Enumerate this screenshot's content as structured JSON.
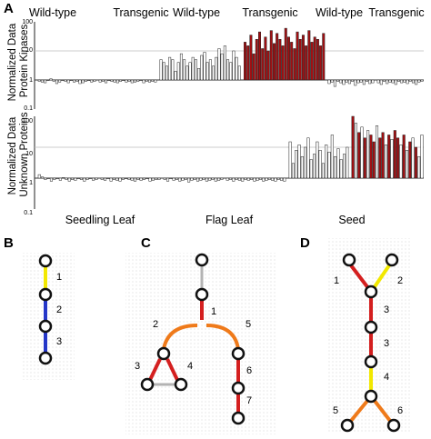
{
  "panel_labels": {
    "a": "A",
    "b": "B",
    "c": "C",
    "d": "D"
  },
  "top_headers": [
    "Wild-type",
    "Transgenic",
    "Wild-type",
    "Transgenic",
    "Wild-type",
    "Transgenic"
  ],
  "tissue_labels": [
    "Seedling Leaf",
    "Flag Leaf",
    "Seed"
  ],
  "colors": {
    "wild_type_bar": "#ffffff",
    "transgenic_bar": "#a30f12",
    "bar_outline": "#222222",
    "reference_line": "#bdbdbd",
    "node_fill": "#ffffff",
    "node_stroke": "#111111",
    "dot_background": "#eeeeee",
    "edge_red": "#d41f1f",
    "edge_orange": "#ef7a1a",
    "edge_yellow": "#f2e800",
    "edge_blue": "#2436c8",
    "edge_gray": "#b3b3b3"
  },
  "chart_data": [
    {
      "type": "bar",
      "ylabel": "Normalized Data Protein Kinases",
      "yscale": "log",
      "ylim": [
        0.1,
        100
      ],
      "yticks": [
        "100",
        "10",
        "1",
        "0.1"
      ],
      "reference_lines": [
        1,
        10
      ],
      "series": [
        {
          "group": "Seedling Leaf Wild-type",
          "color": "white",
          "values": [
            0.9,
            0.85,
            0.8,
            0.95,
            1.1,
            0.9,
            0.75,
            0.85,
            1.0,
            0.9,
            0.8,
            0.95,
            0.85,
            0.9,
            0.75,
            0.8,
            0.9,
            0.95,
            0.85,
            0.9
          ]
        },
        {
          "group": "Seedling Leaf Transgenic",
          "color": "white",
          "values": [
            0.85,
            0.9,
            0.8,
            0.95,
            0.9,
            0.85,
            0.8,
            0.9,
            0.95,
            0.85,
            0.9,
            0.8,
            0.85,
            0.9,
            0.95,
            0.8,
            0.9,
            0.85,
            0.9,
            0.85
          ]
        },
        {
          "group": "Flag Leaf Wild-type",
          "color": "white",
          "values": [
            5,
            4,
            3,
            6,
            5,
            2,
            4,
            8,
            5,
            3,
            4,
            6,
            5,
            2.5,
            7,
            9,
            4,
            5,
            3,
            6,
            12,
            8,
            15,
            5,
            4,
            10,
            6,
            3
          ]
        },
        {
          "group": "Flag Leaf Transgenic",
          "color": "red",
          "values": [
            20,
            15,
            35,
            8,
            25,
            45,
            12,
            30,
            10,
            50,
            18,
            40,
            25,
            15,
            60,
            30,
            20,
            12,
            45,
            25,
            35,
            15,
            50,
            20,
            30,
            25,
            15,
            40
          ]
        },
        {
          "group": "Seed Wild-type",
          "color": "white",
          "values": [
            0.75,
            0.85,
            0.6,
            0.9,
            0.8,
            0.7,
            0.85,
            0.75,
            0.9,
            0.65,
            0.8,
            0.85,
            0.7,
            0.9,
            0.75,
            0.8
          ]
        },
        {
          "group": "Seed Transgenic",
          "color": "white",
          "values": [
            0.8,
            0.7,
            0.9,
            0.75,
            0.85,
            0.8,
            0.7,
            0.9,
            0.8,
            0.85,
            0.75,
            0.9,
            0.8,
            0.7,
            0.85,
            0.9
          ]
        }
      ]
    },
    {
      "type": "bar",
      "ylabel": "Normalized Data Unknown Proteins",
      "yscale": "log",
      "ylim": [
        0.1,
        100
      ],
      "yticks": [
        "100",
        "10",
        "1",
        "0.1"
      ],
      "reference_lines": [
        1,
        10
      ],
      "series": [
        {
          "group": "Seedling Leaf Wild-type",
          "color": "white",
          "values": [
            1.3,
            1.1,
            0.9,
            1.0,
            0.8,
            0.9,
            0.95,
            0.85,
            1.05,
            0.9,
            0.8,
            0.9,
            0.85,
            0.95,
            0.9,
            0.8,
            0.9,
            1.0,
            0.85,
            0.9
          ]
        },
        {
          "group": "Seedling Leaf Transgenic",
          "color": "white",
          "values": [
            0.9,
            0.85,
            0.95,
            0.8,
            0.9,
            0.85,
            0.8,
            0.9,
            0.95,
            0.9,
            0.85,
            0.8,
            0.9,
            0.85,
            0.9,
            0.95,
            0.8,
            0.85,
            0.9,
            0.9
          ]
        },
        {
          "group": "Flag Leaf Wild-type",
          "color": "white",
          "values": [
            0.9,
            0.8,
            0.95,
            0.85,
            0.9,
            0.8,
            0.85,
            0.9,
            0.75,
            0.85,
            0.9,
            0.8,
            0.85,
            0.9,
            0.8,
            0.85,
            0.9,
            0.8,
            0.85,
            0.9
          ]
        },
        {
          "group": "Flag Leaf Transgenic",
          "color": "white",
          "values": [
            0.85,
            0.9,
            0.8,
            0.9,
            0.85,
            0.8,
            0.9,
            0.85,
            0.9,
            0.8,
            0.85,
            0.9,
            0.8,
            0.85,
            0.9,
            0.85,
            0.8,
            0.9,
            0.85,
            0.8
          ]
        },
        {
          "group": "Seed Wild-type",
          "color": "white",
          "values": [
            15,
            3,
            8,
            12,
            5,
            10,
            20,
            4,
            6,
            15,
            8,
            3,
            12,
            7,
            25,
            5,
            9,
            4,
            6,
            10
          ]
        },
        {
          "group": "Seed Transgenic",
          "color": "mixed",
          "values": [
            100,
            60,
            30,
            45,
            20,
            35,
            25,
            15,
            50,
            20,
            30,
            12,
            25,
            18,
            35,
            20,
            12,
            25,
            8,
            15,
            20,
            10,
            5,
            25
          ],
          "red_flags": [
            true,
            false,
            true,
            false,
            true,
            false,
            true,
            true,
            false,
            true,
            true,
            false,
            true,
            false,
            true,
            true,
            false,
            true,
            false,
            true,
            false,
            true,
            false,
            false
          ]
        }
      ]
    }
  ],
  "networks": {
    "b": {
      "edge_labels": [
        "1",
        "2",
        "3"
      ]
    },
    "c": {
      "edge_labels": [
        "1",
        "2",
        "3",
        "4",
        "5",
        "6",
        "7"
      ]
    },
    "d": {
      "edge_labels": [
        "1",
        "2",
        "3",
        "3",
        "4",
        "5",
        "6"
      ]
    }
  }
}
